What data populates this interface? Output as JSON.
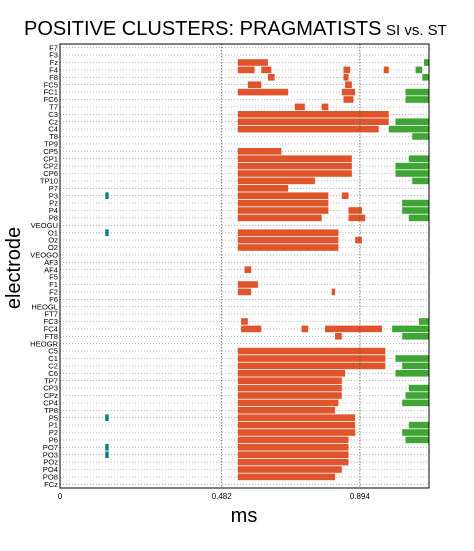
{
  "chart_data": {
    "type": "heatmap",
    "title": "POSITIVE CLUSTERS: PRAGMATISTS",
    "subtitle": "SI vs. ST",
    "xlabel": "ms",
    "ylabel": "electrode",
    "xlim": [
      0,
      1.1
    ],
    "x_ticks": [
      {
        "value": 0,
        "label": "0"
      },
      {
        "value": 0.482,
        "label": "0.482"
      },
      {
        "value": 0.894,
        "label": "0.894"
      }
    ],
    "reference_lines_x": [
      0.482,
      0.894
    ],
    "grid": "horizontal dotted per electrode",
    "electrodes": [
      "F7",
      "F3",
      "Fz",
      "F4",
      "F8",
      "FC5",
      "FC1",
      "FC6",
      "T7",
      "C3",
      "Cz",
      "C4",
      "T8",
      "TP9",
      "CP5",
      "CP1",
      "CP2",
      "CP6",
      "TP10",
      "P7",
      "P3",
      "Pz",
      "P4",
      "P8",
      "VEOGU",
      "O1",
      "Oz",
      "O2",
      "VEOGO",
      "AF3",
      "AF4",
      "F5",
      "F1",
      "F2",
      "F6",
      "HEOGL",
      "FT7",
      "FC3",
      "FC4",
      "FT8",
      "HEOGR",
      "C5",
      "C1",
      "C2",
      "C6",
      "TP7",
      "CP3",
      "CPz",
      "CP4",
      "TP8",
      "P5",
      "P1",
      "P2",
      "P6",
      "PO7",
      "PO3",
      "POz",
      "PO4",
      "PO8",
      "FCz"
    ],
    "series": [
      {
        "name": "",
        "color": "#e0542b",
        "runs": [
          {
            "row": 2,
            "x0": 0.53,
            "x1": 0.62
          },
          {
            "row": 3,
            "x0": 0.53,
            "x1": 0.58
          },
          {
            "row": 3,
            "x0": 0.6,
            "x1": 0.63
          },
          {
            "row": 4,
            "x0": 0.62,
            "x1": 0.64
          },
          {
            "row": 3,
            "x0": 0.845,
            "x1": 0.865
          },
          {
            "row": 4,
            "x0": 0.845,
            "x1": 0.86
          },
          {
            "row": 3,
            "x0": 0.965,
            "x1": 0.98
          },
          {
            "row": 6,
            "x0": 0.53,
            "x1": 0.68
          },
          {
            "row": 5,
            "x0": 0.56,
            "x1": 0.6
          },
          {
            "row": 6,
            "x0": 0.84,
            "x1": 0.88
          },
          {
            "row": 7,
            "x0": 0.845,
            "x1": 0.875
          },
          {
            "row": 5,
            "x0": 0.85,
            "x1": 0.87
          },
          {
            "row": 9,
            "x0": 0.53,
            "x1": 0.98
          },
          {
            "row": 10,
            "x0": 0.53,
            "x1": 0.98
          },
          {
            "row": 11,
            "x0": 0.53,
            "x1": 0.95
          },
          {
            "row": 8,
            "x0": 0.7,
            "x1": 0.73
          },
          {
            "row": 8,
            "x0": 0.78,
            "x1": 0.8
          },
          {
            "row": 15,
            "x0": 0.53,
            "x1": 0.87
          },
          {
            "row": 16,
            "x0": 0.53,
            "x1": 0.87
          },
          {
            "row": 17,
            "x0": 0.53,
            "x1": 0.87
          },
          {
            "row": 14,
            "x0": 0.53,
            "x1": 0.66
          },
          {
            "row": 18,
            "x0": 0.53,
            "x1": 0.76
          },
          {
            "row": 20,
            "x0": 0.53,
            "x1": 0.8
          },
          {
            "row": 21,
            "x0": 0.53,
            "x1": 0.8
          },
          {
            "row": 22,
            "x0": 0.53,
            "x1": 0.8
          },
          {
            "row": 23,
            "x0": 0.53,
            "x1": 0.78
          },
          {
            "row": 19,
            "x0": 0.53,
            "x1": 0.68
          },
          {
            "row": 20,
            "x0": 0.84,
            "x1": 0.86
          },
          {
            "row": 22,
            "x0": 0.86,
            "x1": 0.9
          },
          {
            "row": 23,
            "x0": 0.86,
            "x1": 0.91
          },
          {
            "row": 25,
            "x0": 0.53,
            "x1": 0.83
          },
          {
            "row": 26,
            "x0": 0.53,
            "x1": 0.83
          },
          {
            "row": 27,
            "x0": 0.53,
            "x1": 0.83
          },
          {
            "row": 26,
            "x0": 0.88,
            "x1": 0.9
          },
          {
            "row": 30,
            "x0": 0.55,
            "x1": 0.57
          },
          {
            "row": 32,
            "x0": 0.53,
            "x1": 0.59
          },
          {
            "row": 33,
            "x0": 0.53,
            "x1": 0.57
          },
          {
            "row": 33,
            "x0": 0.81,
            "x1": 0.82
          },
          {
            "row": 38,
            "x0": 0.54,
            "x1": 0.6
          },
          {
            "row": 37,
            "x0": 0.54,
            "x1": 0.56
          },
          {
            "row": 38,
            "x0": 0.72,
            "x1": 0.74
          },
          {
            "row": 38,
            "x0": 0.79,
            "x1": 0.96
          },
          {
            "row": 39,
            "x0": 0.82,
            "x1": 0.84
          },
          {
            "row": 41,
            "x0": 0.53,
            "x1": 0.97
          },
          {
            "row": 42,
            "x0": 0.53,
            "x1": 0.97
          },
          {
            "row": 43,
            "x0": 0.53,
            "x1": 0.97
          },
          {
            "row": 44,
            "x0": 0.53,
            "x1": 0.85
          },
          {
            "row": 45,
            "x0": 0.53,
            "x1": 0.84
          },
          {
            "row": 46,
            "x0": 0.53,
            "x1": 0.84
          },
          {
            "row": 47,
            "x0": 0.53,
            "x1": 0.84
          },
          {
            "row": 48,
            "x0": 0.53,
            "x1": 0.83
          },
          {
            "row": 49,
            "x0": 0.53,
            "x1": 0.82
          },
          {
            "row": 50,
            "x0": 0.53,
            "x1": 0.88
          },
          {
            "row": 51,
            "x0": 0.53,
            "x1": 0.88
          },
          {
            "row": 52,
            "x0": 0.53,
            "x1": 0.88
          },
          {
            "row": 53,
            "x0": 0.53,
            "x1": 0.86
          },
          {
            "row": 54,
            "x0": 0.53,
            "x1": 0.86
          },
          {
            "row": 55,
            "x0": 0.53,
            "x1": 0.86
          },
          {
            "row": 56,
            "x0": 0.53,
            "x1": 0.86
          },
          {
            "row": 57,
            "x0": 0.53,
            "x1": 0.84
          },
          {
            "row": 58,
            "x0": 0.53,
            "x1": 0.82
          }
        ]
      },
      {
        "name": "",
        "color": "#3fa535",
        "runs": [
          {
            "row": 3,
            "x0": 1.06,
            "x1": 1.08
          },
          {
            "row": 4,
            "x0": 1.08,
            "x1": 1.1
          },
          {
            "row": 2,
            "x0": 1.085,
            "x1": 1.1
          },
          {
            "row": 6,
            "x0": 1.03,
            "x1": 1.1
          },
          {
            "row": 7,
            "x0": 1.03,
            "x1": 1.1
          },
          {
            "row": 10,
            "x0": 1.0,
            "x1": 1.1
          },
          {
            "row": 11,
            "x0": 0.98,
            "x1": 1.1
          },
          {
            "row": 12,
            "x0": 1.05,
            "x1": 1.1
          },
          {
            "row": 15,
            "x0": 1.04,
            "x1": 1.1
          },
          {
            "row": 16,
            "x0": 1.0,
            "x1": 1.1
          },
          {
            "row": 17,
            "x0": 1.0,
            "x1": 1.1
          },
          {
            "row": 18,
            "x0": 1.05,
            "x1": 1.1
          },
          {
            "row": 21,
            "x0": 1.02,
            "x1": 1.1
          },
          {
            "row": 22,
            "x0": 1.02,
            "x1": 1.1
          },
          {
            "row": 23,
            "x0": 1.04,
            "x1": 1.1
          },
          {
            "row": 38,
            "x0": 0.99,
            "x1": 1.1
          },
          {
            "row": 39,
            "x0": 1.02,
            "x1": 1.1
          },
          {
            "row": 37,
            "x0": 1.07,
            "x1": 1.1
          },
          {
            "row": 42,
            "x0": 1.0,
            "x1": 1.1
          },
          {
            "row": 43,
            "x0": 1.02,
            "x1": 1.1
          },
          {
            "row": 44,
            "x0": 1.0,
            "x1": 1.1
          },
          {
            "row": 46,
            "x0": 1.04,
            "x1": 1.1
          },
          {
            "row": 47,
            "x0": 1.03,
            "x1": 1.1
          },
          {
            "row": 48,
            "x0": 1.02,
            "x1": 1.1
          },
          {
            "row": 51,
            "x0": 1.04,
            "x1": 1.1
          },
          {
            "row": 52,
            "x0": 1.02,
            "x1": 1.1
          },
          {
            "row": 53,
            "x0": 1.03,
            "x1": 1.1
          }
        ]
      },
      {
        "name": "",
        "color": "#008080",
        "runs": [
          {
            "row": 20,
            "x0": 0.135,
            "x1": 0.145
          },
          {
            "row": 25,
            "x0": 0.135,
            "x1": 0.145
          },
          {
            "row": 50,
            "x0": 0.135,
            "x1": 0.145
          },
          {
            "row": 54,
            "x0": 0.135,
            "x1": 0.145
          },
          {
            "row": 55,
            "x0": 0.135,
            "x1": 0.145
          }
        ]
      }
    ]
  }
}
